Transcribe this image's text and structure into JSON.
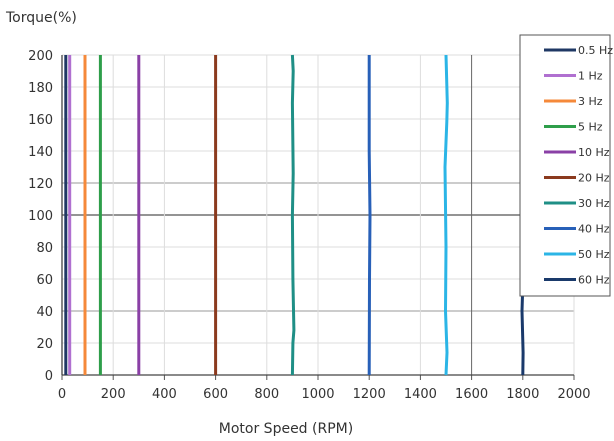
{
  "chart_data": {
    "type": "line",
    "title": "",
    "ylabel": "Torque(%)",
    "xlabel": "Motor Speed (RPM)",
    "xlim": [
      0,
      2000
    ],
    "ylim": [
      0,
      200
    ],
    "xticks": [
      "0",
      "200",
      "400",
      "600",
      "800",
      "1000",
      "1200",
      "1400",
      "1600",
      "1800",
      "2000"
    ],
    "yticks": [
      "0",
      "20",
      "40",
      "60",
      "80",
      "100",
      "120",
      "140",
      "160",
      "180",
      "200"
    ],
    "grid": true,
    "legend_position": "right",
    "series": [
      {
        "name": "0.5 Hz",
        "color": "#1f3864",
        "points": [
          [
            15,
            0
          ],
          [
            15,
            200
          ]
        ]
      },
      {
        "name": "1 Hz",
        "color": "#b070d0",
        "points": [
          [
            30,
            0
          ],
          [
            30,
            200
          ]
        ]
      },
      {
        "name": "3 Hz",
        "color": "#f5893a",
        "points": [
          [
            90,
            0
          ],
          [
            90,
            200
          ]
        ]
      },
      {
        "name": "5 Hz",
        "color": "#2e9e4a",
        "points": [
          [
            150,
            0
          ],
          [
            150,
            200
          ]
        ]
      },
      {
        "name": "10 Hz",
        "color": "#8a40a6",
        "points": [
          [
            300,
            0
          ],
          [
            300,
            200
          ]
        ]
      },
      {
        "name": "20 Hz",
        "color": "#8b3a1e",
        "points": [
          [
            600,
            0
          ],
          [
            600,
            200
          ]
        ]
      },
      {
        "name": "30 Hz",
        "color": "#1f8f86",
        "points": [
          [
            900,
            0
          ],
          [
            902,
            20
          ],
          [
            906,
            28
          ],
          [
            902,
            60
          ],
          [
            900,
            100
          ],
          [
            903,
            126
          ],
          [
            900,
            170
          ],
          [
            903,
            190
          ],
          [
            900,
            200
          ]
        ]
      },
      {
        "name": "40 Hz",
        "color": "#2860b8",
        "points": [
          [
            1200,
            0
          ],
          [
            1201,
            60
          ],
          [
            1203,
            100
          ],
          [
            1200,
            140
          ],
          [
            1200,
            200
          ]
        ]
      },
      {
        "name": "50 Hz",
        "color": "#2bb5e6",
        "points": [
          [
            1500,
            0
          ],
          [
            1504,
            14
          ],
          [
            1498,
            40
          ],
          [
            1500,
            80
          ],
          [
            1496,
            130
          ],
          [
            1503,
            158
          ],
          [
            1505,
            170
          ],
          [
            1500,
            200
          ]
        ]
      },
      {
        "name": "60 Hz",
        "color": "#1a3a6b",
        "points": [
          [
            1800,
            0
          ],
          [
            1801,
            14
          ],
          [
            1797,
            40
          ],
          [
            1801,
            62
          ],
          [
            1796,
            70
          ],
          [
            1800,
            100
          ],
          [
            1805,
            106
          ],
          [
            1799,
            118
          ],
          [
            1801,
            130
          ],
          [
            1803,
            176
          ],
          [
            1799,
            190
          ],
          [
            1800,
            200
          ]
        ]
      }
    ]
  }
}
